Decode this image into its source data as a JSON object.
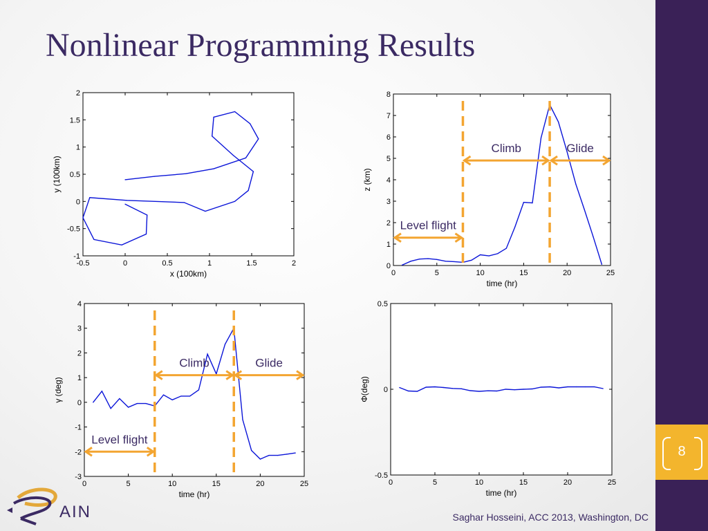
{
  "slide": {
    "title": "Nonlinear Programming Results",
    "page_number": "8",
    "footer": "Saghar Hosseini,  ACC 2013, Washington, DC"
  },
  "colors": {
    "title": "#3b2a63",
    "sidebar": "#3a2157",
    "page_badge": "#f3b52d",
    "data_line": "#0a14d8",
    "annotation": "#f3a531"
  },
  "logo": {
    "text": "AIN",
    "icon": "rain-logo-swirl-icon"
  },
  "chart_data": [
    {
      "type": "line",
      "xlabel": "x (100km)",
      "ylabel": "y (100km)",
      "xlim": [
        -0.5,
        2
      ],
      "ylim": [
        -1,
        2
      ],
      "xticks": [
        "-0.5",
        "0",
        "0.5",
        "1",
        "1.5",
        "2"
      ],
      "yticks": [
        "-1",
        "-0.5",
        "0",
        "0.5",
        "1",
        "1.5",
        "2"
      ],
      "x": [
        0.0,
        0.35,
        0.72,
        1.05,
        1.43,
        1.58,
        1.48,
        1.3,
        1.05,
        1.03,
        1.28,
        1.52,
        1.46,
        1.3,
        0.95,
        0.7,
        0.02,
        -0.42,
        -0.5,
        -0.37,
        -0.04,
        0.25,
        0.26,
        0.0
      ],
      "y": [
        0.4,
        0.46,
        0.51,
        0.6,
        0.8,
        1.15,
        1.43,
        1.65,
        1.55,
        1.2,
        0.85,
        0.55,
        0.2,
        0.0,
        -0.18,
        -0.02,
        0.02,
        0.07,
        -0.3,
        -0.7,
        -0.8,
        -0.6,
        -0.25,
        -0.05
      ]
    },
    {
      "type": "line",
      "xlabel": "time (hr)",
      "ylabel": "z (km)",
      "xlim": [
        0,
        25
      ],
      "ylim": [
        0,
        8
      ],
      "xticks": [
        "0",
        "5",
        "10",
        "15",
        "20",
        "25"
      ],
      "yticks": [
        "0",
        "1",
        "2",
        "3",
        "4",
        "5",
        "6",
        "7",
        "8"
      ],
      "x": [
        1,
        2,
        3,
        4,
        5,
        6,
        7,
        8,
        9,
        10,
        11,
        12,
        13,
        14,
        15,
        16,
        17,
        18,
        19,
        20,
        21,
        22,
        23,
        24
      ],
      "y": [
        0.02,
        0.2,
        0.3,
        0.32,
        0.28,
        0.2,
        0.18,
        0.15,
        0.25,
        0.5,
        0.45,
        0.55,
        0.8,
        1.8,
        2.95,
        2.92,
        5.95,
        7.5,
        6.7,
        5.3,
        3.8,
        2.6,
        1.35,
        0.05
      ],
      "annotations": [
        {
          "label": "Climb",
          "x_start": 8,
          "x_end": 18,
          "y": 4.9
        },
        {
          "label": "Glide",
          "x_start": 18,
          "x_end": 25,
          "y": 4.9
        },
        {
          "label": "Level flight",
          "x_start": 0,
          "x_end": 8,
          "y": 1.3
        }
      ],
      "markers_x": [
        8,
        18
      ]
    },
    {
      "type": "line",
      "xlabel": "time (hr)",
      "ylabel": "γ (deg)",
      "xlim": [
        0,
        25
      ],
      "ylim": [
        -3,
        4
      ],
      "xticks": [
        "0",
        "5",
        "10",
        "15",
        "20",
        "25"
      ],
      "yticks": [
        "-3",
        "-2",
        "-1",
        "0",
        "1",
        "2",
        "3",
        "4"
      ],
      "x": [
        1,
        2,
        3,
        4,
        5,
        6,
        7,
        8,
        9,
        10,
        11,
        12,
        13,
        14,
        15,
        16,
        17,
        18,
        19,
        20,
        21,
        22,
        23,
        24
      ],
      "y": [
        0.0,
        0.45,
        -0.25,
        0.15,
        -0.2,
        -0.05,
        -0.05,
        -0.15,
        0.3,
        0.1,
        0.25,
        0.25,
        0.5,
        1.95,
        1.15,
        2.35,
        3.0,
        -0.7,
        -1.95,
        -2.3,
        -2.15,
        -2.15,
        -2.1,
        -2.05
      ],
      "annotations": [
        {
          "label": "Climb",
          "x_start": 8,
          "x_end": 17,
          "y": 1.1
        },
        {
          "label": "Glide",
          "x_start": 17,
          "x_end": 25,
          "y": 1.1
        },
        {
          "label": "Level flight",
          "x_start": 0,
          "x_end": 8,
          "y": -2.0
        }
      ],
      "markers_x": [
        8,
        17
      ]
    },
    {
      "type": "line",
      "xlabel": "time (hr)",
      "ylabel": "Φ(deg)",
      "xlim": [
        0,
        25
      ],
      "ylim": [
        -0.5,
        0.5
      ],
      "xticks": [
        "0",
        "5",
        "10",
        "15",
        "20",
        "25"
      ],
      "yticks": [
        "-0.5",
        "0",
        "0.5"
      ],
      "x": [
        1,
        2,
        3,
        4,
        5,
        6,
        7,
        8,
        9,
        10,
        11,
        12,
        13,
        14,
        15,
        16,
        17,
        18,
        19,
        20,
        21,
        22,
        23,
        24
      ],
      "y": [
        0.01,
        -0.01,
        -0.012,
        0.012,
        0.014,
        0.01,
        0.005,
        0.003,
        -0.008,
        -0.012,
        -0.009,
        -0.01,
        0.0,
        -0.003,
        0.0,
        0.002,
        0.012,
        0.014,
        0.008,
        0.014,
        0.014,
        0.014,
        0.014,
        0.004
      ]
    }
  ]
}
